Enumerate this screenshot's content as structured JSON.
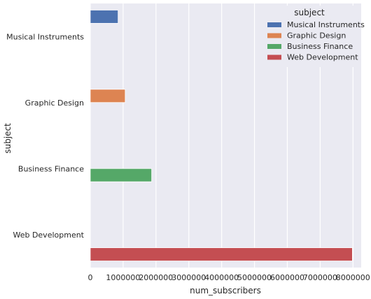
{
  "chart_data": {
    "type": "bar",
    "orientation": "horizontal",
    "xlabel": "num_subscribers",
    "ylabel": "subject",
    "xlim": [
      0,
      8250000
    ],
    "xticks": [
      0,
      1000000,
      2000000,
      3000000,
      4000000,
      5000000,
      6000000,
      7000000,
      8000000
    ],
    "xtick_labels": [
      "0",
      "1000000",
      "2000000",
      "3000000",
      "4000000",
      "5000000",
      "6000000",
      "7000000",
      "8000000"
    ],
    "categories": [
      "Musical Instruments",
      "Graphic Design",
      "Business Finance",
      "Web Development"
    ],
    "series": [
      {
        "name": "Musical Instruments",
        "color": "#4c72b0",
        "values": [
          846689,
          null,
          null,
          null
        ]
      },
      {
        "name": "Graphic Design",
        "color": "#dd8452",
        "values": [
          null,
          1063148,
          null,
          null
        ]
      },
      {
        "name": "Business Finance",
        "color": "#55a868",
        "values": [
          null,
          null,
          1868711,
          null
        ]
      },
      {
        "name": "Web Development",
        "color": "#c44e52",
        "values": [
          null,
          null,
          null,
          7981150
        ]
      }
    ],
    "legend": {
      "title": "subject",
      "placement": "top-right"
    },
    "grid": true
  }
}
